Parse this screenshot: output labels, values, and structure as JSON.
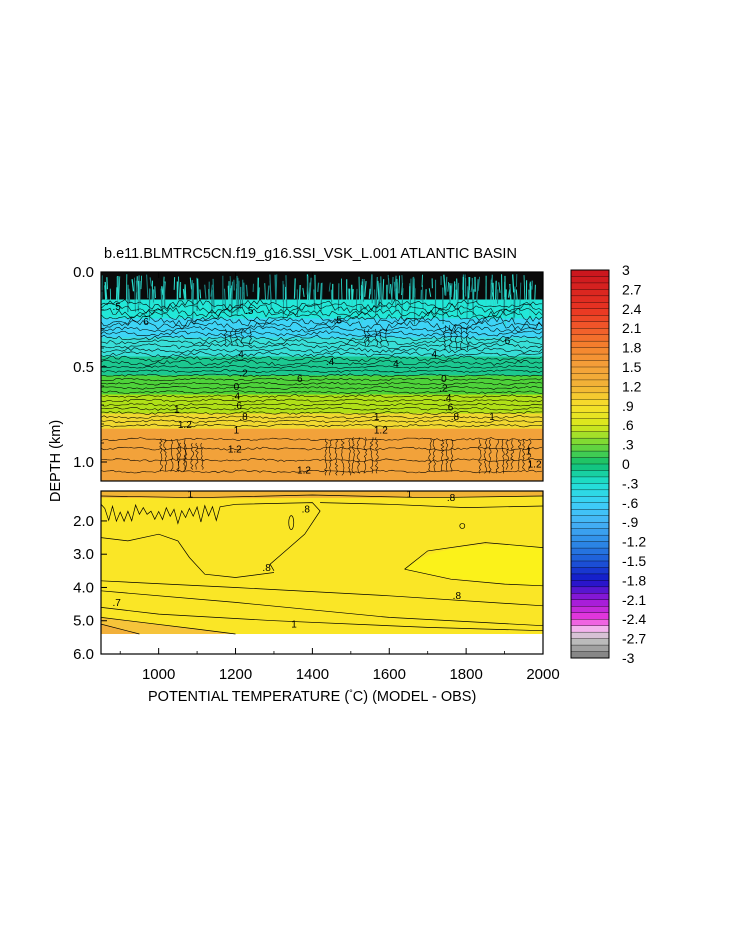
{
  "chart_data": {
    "type": "heatmap",
    "title": "b.e11.BLMTRC5CN.f19_g16.SSI_VSK_L.001 ATLANTIC BASIN",
    "xlabel": "POTENTIAL TEMPERATURE (",
    "xlabel_unit": "°C",
    "xlabel_suffix": ") (MODEL - OBS)",
    "ylabel": "DEPTH (km)",
    "xlim": [
      850,
      2000
    ],
    "x_ticks": [
      1000,
      1200,
      1400,
      1600,
      1800,
      2000
    ],
    "upper_panel": {
      "ylim": [
        0.0,
        1.1
      ],
      "y_ticks": [
        0.0,
        0.5,
        1.0
      ],
      "y_tick_labels": [
        "0.0",
        "0.5",
        "1.0"
      ],
      "bands": [
        {
          "depth": [
            0.0,
            0.15
          ],
          "value": -3.0,
          "color": "#0a0a0a"
        },
        {
          "depth": [
            0.15,
            0.25
          ],
          "value": -0.45,
          "color": "#22e8d8"
        },
        {
          "depth": [
            0.25,
            0.35
          ],
          "value": -0.6,
          "color": "#3ed4f6"
        },
        {
          "depth": [
            0.35,
            0.45
          ],
          "value": -0.4,
          "color": "#38dfd8"
        },
        {
          "depth": [
            0.45,
            0.55
          ],
          "value": -0.05,
          "color": "#1cc890"
        },
        {
          "depth": [
            0.55,
            0.65
          ],
          "value": 0.3,
          "color": "#4ed23a"
        },
        {
          "depth": [
            0.65,
            0.75
          ],
          "value": 0.65,
          "color": "#b0e018"
        },
        {
          "depth": [
            0.75,
            0.83
          ],
          "value": 0.95,
          "color": "#f0d830"
        },
        {
          "depth": [
            0.83,
            1.1
          ],
          "value": 1.3,
          "color": "#f2a23a"
        }
      ],
      "contour_labels": [
        {
          "x": 880,
          "d": 0.2,
          "text": ".5"
        },
        {
          "x": 960,
          "d": 0.28,
          "text": "6"
        },
        {
          "x": 1225,
          "d": 0.22,
          "text": ".5"
        },
        {
          "x": 1200,
          "d": 0.45,
          "text": ".4"
        },
        {
          "x": 1210,
          "d": 0.55,
          "text": ".2"
        },
        {
          "x": 1195,
          "d": 0.62,
          "text": "0"
        },
        {
          "x": 1190,
          "d": 0.67,
          "text": ".4"
        },
        {
          "x": 1195,
          "d": 0.72,
          "text": ".6"
        },
        {
          "x": 1210,
          "d": 0.78,
          "text": ".8"
        },
        {
          "x": 1195,
          "d": 0.85,
          "text": "1"
        },
        {
          "x": 1180,
          "d": 0.95,
          "text": "1.2"
        },
        {
          "x": 1040,
          "d": 0.74,
          "text": "1"
        },
        {
          "x": 1050,
          "d": 0.82,
          "text": "1.2"
        },
        {
          "x": 1360,
          "d": 0.58,
          "text": "6"
        },
        {
          "x": 1455,
          "d": 0.27,
          "text": ".5"
        },
        {
          "x": 1435,
          "d": 0.49,
          "text": ".4"
        },
        {
          "x": 1560,
          "d": 0.78,
          "text": "1"
        },
        {
          "x": 1560,
          "d": 0.85,
          "text": "1.2"
        },
        {
          "x": 1610,
          "d": 0.5,
          "text": "4"
        },
        {
          "x": 1710,
          "d": 0.45,
          "text": "4"
        },
        {
          "x": 1735,
          "d": 0.58,
          "text": "0"
        },
        {
          "x": 1730,
          "d": 0.63,
          "text": ".2"
        },
        {
          "x": 1740,
          "d": 0.68,
          "text": ".4"
        },
        {
          "x": 1745,
          "d": 0.73,
          "text": ".6"
        },
        {
          "x": 1760,
          "d": 0.78,
          "text": ".8"
        },
        {
          "x": 1900,
          "d": 0.38,
          "text": "6"
        },
        {
          "x": 1860,
          "d": 0.78,
          "text": "1"
        },
        {
          "x": 1955,
          "d": 0.96,
          "text": "1"
        },
        {
          "x": 1960,
          "d": 1.03,
          "text": "1.2"
        },
        {
          "x": 1360,
          "d": 1.06,
          "text": "1.2"
        }
      ]
    },
    "lower_panel": {
      "ylim": [
        1.1,
        6.0
      ],
      "data_max_depth": 5.4,
      "y_ticks": [
        2.0,
        3.0,
        4.0,
        5.0,
        6.0
      ],
      "y_tick_labels": [
        "2.0",
        "3.0",
        "4.0",
        "5.0",
        "6.0"
      ],
      "base_value": 0.85,
      "base_color": "#fae626",
      "warm_value": 1.05,
      "warm_color": "#f2b436",
      "cool_value": 0.7,
      "cool_color": "#fbf21a",
      "contour_labels": [
        {
          "x": 1075,
          "d": 1.3,
          "text": "1"
        },
        {
          "x": 1372,
          "d": 1.75,
          "text": ".8"
        },
        {
          "x": 1750,
          "d": 1.4,
          "text": ".8"
        },
        {
          "x": 1645,
          "d": 1.3,
          "text": "1"
        },
        {
          "x": 1270,
          "d": 3.5,
          "text": ".8"
        },
        {
          "x": 880,
          "d": 4.55,
          "text": ".7"
        },
        {
          "x": 1765,
          "d": 4.35,
          "text": ".8"
        },
        {
          "x": 1345,
          "d": 5.2,
          "text": "1"
        }
      ]
    },
    "colorbar": {
      "ticks": [
        "3",
        "2.7",
        "2.4",
        "2.1",
        "1.8",
        "1.5",
        "1.2",
        ".9",
        ".6",
        ".3",
        "0",
        "-.3",
        "-.6",
        "-.9",
        "-1.2",
        "-1.5",
        "-1.8",
        "-2.1",
        "-2.4",
        "-2.7",
        "-3"
      ],
      "stops": [
        {
          "v": 3.0,
          "color": "#c8141e"
        },
        {
          "v": 2.4,
          "color": "#e83422"
        },
        {
          "v": 2.1,
          "color": "#f25a2a"
        },
        {
          "v": 1.8,
          "color": "#f4842e"
        },
        {
          "v": 1.5,
          "color": "#f4a23a"
        },
        {
          "v": 1.2,
          "color": "#f2b436"
        },
        {
          "v": 0.9,
          "color": "#f8e02a"
        },
        {
          "v": 0.6,
          "color": "#d8e81c"
        },
        {
          "v": 0.3,
          "color": "#70d836"
        },
        {
          "v": 0.0,
          "color": "#10c070"
        },
        {
          "v": -0.3,
          "color": "#20e0d4"
        },
        {
          "v": -0.6,
          "color": "#3cd0f8"
        },
        {
          "v": -0.9,
          "color": "#46b4f6"
        },
        {
          "v": -1.2,
          "color": "#2e8ce8"
        },
        {
          "v": -1.5,
          "color": "#1c5ad8"
        },
        {
          "v": -1.8,
          "color": "#1414c8"
        },
        {
          "v": -2.1,
          "color": "#9a18d8"
        },
        {
          "v": -2.4,
          "color": "#ee3cdc"
        },
        {
          "v": -2.55,
          "color": "#f4b4ee"
        },
        {
          "v": -2.7,
          "color": "#c8c8c8"
        },
        {
          "v": -3.0,
          "color": "#7a7a7a"
        }
      ]
    }
  }
}
